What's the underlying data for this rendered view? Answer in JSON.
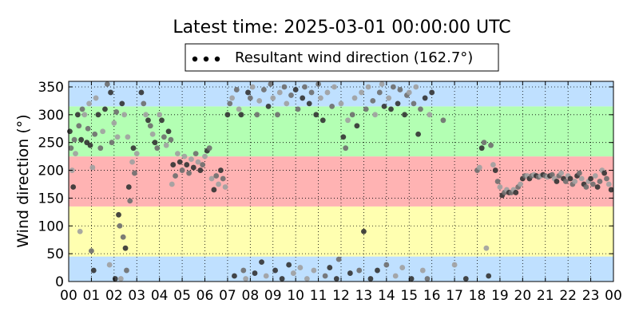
{
  "chart_data": {
    "type": "scatter",
    "title": "Latest time: 2025-03-01 00:00:00 UTC",
    "ylabel": "Wind direction (°)",
    "xlabel": "",
    "xlim": [
      0,
      24
    ],
    "ylim": [
      0,
      360
    ],
    "x_ticks": [
      "00",
      "01",
      "02",
      "03",
      "04",
      "05",
      "06",
      "07",
      "08",
      "09",
      "10",
      "11",
      "12",
      "13",
      "14",
      "15",
      "16",
      "17",
      "18",
      "19",
      "20",
      "21",
      "22",
      "23",
      "00"
    ],
    "y_ticks": [
      0,
      50,
      100,
      150,
      200,
      250,
      300,
      350
    ],
    "grid": true,
    "legend": {
      "placement": "top-center",
      "entries": [
        "Resultant wind direction (162.7°)"
      ]
    },
    "bands": [
      {
        "from": 0,
        "to": 45,
        "color": "#bfe0ff"
      },
      {
        "from": 45,
        "to": 135,
        "color": "#ffffb0"
      },
      {
        "from": 135,
        "to": 225,
        "color": "#ffb3b3"
      },
      {
        "from": 225,
        "to": 315,
        "color": "#b3ffb3"
      },
      {
        "from": 315,
        "to": 360,
        "color": "#bfe0ff"
      }
    ],
    "colors": {
      "dark": "#333333",
      "mid": "#6e6e6e",
      "light": "#a0a0a0"
    },
    "series": [
      {
        "values": [
          [
            0.05,
            270
          ],
          [
            0.1,
            240
          ],
          [
            0.15,
            200
          ],
          [
            0.2,
            170
          ],
          [
            0.25,
            255
          ],
          [
            0.3,
            230
          ],
          [
            0.4,
            300
          ],
          [
            0.45,
            280
          ],
          [
            0.5,
            90
          ],
          [
            0.55,
            255
          ],
          [
            0.6,
            310
          ],
          [
            0.7,
            300
          ],
          [
            0.8,
            250
          ],
          [
            0.85,
            275
          ],
          [
            0.9,
            320
          ],
          [
            0.95,
            245
          ],
          [
            1.0,
            55
          ],
          [
            1.05,
            205
          ],
          [
            1.1,
            20
          ],
          [
            1.15,
            265
          ],
          [
            1.2,
            330
          ],
          [
            1.3,
            300
          ],
          [
            1.4,
            240
          ],
          [
            1.5,
            270
          ],
          [
            1.6,
            310
          ],
          [
            1.7,
            355
          ],
          [
            1.8,
            30
          ],
          [
            1.85,
            340
          ],
          [
            1.9,
            250
          ],
          [
            2.0,
            285
          ],
          [
            2.05,
            5
          ],
          [
            2.1,
            305
          ],
          [
            2.15,
            260
          ],
          [
            2.2,
            120
          ],
          [
            2.25,
            100
          ],
          [
            2.3,
            5
          ],
          [
            2.35,
            320
          ],
          [
            2.4,
            80
          ],
          [
            2.45,
            300
          ],
          [
            2.5,
            60
          ],
          [
            2.55,
            20
          ],
          [
            2.6,
            260
          ],
          [
            2.65,
            170
          ],
          [
            2.7,
            145
          ],
          [
            2.8,
            215
          ],
          [
            2.85,
            240
          ],
          [
            2.9,
            195
          ],
          [
            3.0,
            230
          ],
          [
            3.2,
            340
          ],
          [
            3.3,
            320
          ],
          [
            3.4,
            300
          ],
          [
            3.5,
            290
          ],
          [
            3.6,
            280
          ],
          [
            3.7,
            265
          ],
          [
            3.8,
            250
          ],
          [
            3.9,
            240
          ],
          [
            4.0,
            300
          ],
          [
            4.1,
            290
          ],
          [
            4.2,
            260
          ],
          [
            4.3,
            245
          ],
          [
            4.4,
            270
          ],
          [
            4.5,
            255
          ],
          [
            4.55,
            175
          ],
          [
            4.6,
            210
          ],
          [
            4.7,
            190
          ],
          [
            4.8,
            230
          ],
          [
            4.9,
            215
          ],
          [
            5.0,
            200
          ],
          [
            5.1,
            225
          ],
          [
            5.2,
            210
          ],
          [
            5.3,
            195
          ],
          [
            5.4,
            220
          ],
          [
            5.5,
            205
          ],
          [
            5.6,
            230
          ],
          [
            5.7,
            215
          ],
          [
            5.8,
            200
          ],
          [
            5.9,
            210
          ],
          [
            6.0,
            225
          ],
          [
            6.1,
            235
          ],
          [
            6.2,
            240
          ],
          [
            6.3,
            185
          ],
          [
            6.4,
            165
          ],
          [
            6.5,
            190
          ],
          [
            6.6,
            175
          ],
          [
            6.7,
            200
          ],
          [
            6.8,
            185
          ],
          [
            6.9,
            170
          ],
          [
            7.0,
            300
          ],
          [
            7.1,
            320
          ],
          [
            7.2,
            330
          ],
          [
            7.3,
            10
          ],
          [
            7.4,
            345
          ],
          [
            7.5,
            310
          ],
          [
            7.6,
            300
          ],
          [
            7.7,
            20
          ],
          [
            7.8,
            5
          ],
          [
            7.9,
            340
          ],
          [
            8.0,
            330
          ],
          [
            8.1,
            350
          ],
          [
            8.2,
            15
          ],
          [
            8.3,
            300
          ],
          [
            8.4,
            325
          ],
          [
            8.5,
            35
          ],
          [
            8.6,
            345
          ],
          [
            8.7,
            10
          ],
          [
            8.8,
            315
          ],
          [
            8.9,
            355
          ],
          [
            9.0,
            330
          ],
          [
            9.1,
            20
          ],
          [
            9.2,
            300
          ],
          [
            9.3,
            340
          ],
          [
            9.4,
            5
          ],
          [
            9.5,
            350
          ],
          [
            9.6,
            320
          ],
          [
            9.7,
            30
          ],
          [
            9.8,
            335
          ],
          [
            9.9,
            15
          ],
          [
            10.0,
            345
          ],
          [
            10.1,
            310
          ],
          [
            10.2,
            25
          ],
          [
            10.3,
            330
          ],
          [
            10.4,
            350
          ],
          [
            10.5,
            5
          ],
          [
            10.6,
            320
          ],
          [
            10.7,
            340
          ],
          [
            10.8,
            20
          ],
          [
            10.9,
            300
          ],
          [
            11.0,
            355
          ],
          [
            11.1,
            330
          ],
          [
            11.2,
            290
          ],
          [
            11.3,
            10
          ],
          [
            11.4,
            340
          ],
          [
            11.5,
            25
          ],
          [
            11.6,
            315
          ],
          [
            11.7,
            350
          ],
          [
            11.8,
            5
          ],
          [
            11.9,
            40
          ],
          [
            12.0,
            320
          ],
          [
            12.1,
            260
          ],
          [
            12.2,
            240
          ],
          [
            12.3,
            290
          ],
          [
            12.4,
            15
          ],
          [
            12.5,
            300
          ],
          [
            12.6,
            330
          ],
          [
            12.7,
            280
          ],
          [
            12.8,
            20
          ],
          [
            12.9,
            340
          ],
          [
            13.0,
            90
          ],
          [
            13.1,
            310
          ],
          [
            13.2,
            350
          ],
          [
            13.3,
            5
          ],
          [
            13.4,
            325
          ],
          [
            13.5,
            300
          ],
          [
            13.6,
            20
          ],
          [
            13.7,
            340
          ],
          [
            13.8,
            355
          ],
          [
            13.9,
            315
          ],
          [
            14.0,
            30
          ],
          [
            14.1,
            330
          ],
          [
            14.2,
            310
          ],
          [
            14.3,
            350
          ],
          [
            14.4,
            10
          ],
          [
            14.5,
            320
          ],
          [
            14.6,
            345
          ],
          [
            14.7,
            25
          ],
          [
            14.8,
            300
          ],
          [
            14.9,
            335
          ],
          [
            15.0,
            340
          ],
          [
            15.1,
            5
          ],
          [
            15.2,
            320
          ],
          [
            15.3,
            350
          ],
          [
            15.4,
            265
          ],
          [
            15.5,
            310
          ],
          [
            15.6,
            20
          ],
          [
            15.7,
            330
          ],
          [
            15.8,
            5
          ],
          [
            15.9,
            300
          ],
          [
            16.0,
            340
          ],
          [
            16.5,
            290
          ],
          [
            17.0,
            30
          ],
          [
            17.5,
            5
          ],
          [
            18.0,
            200
          ],
          [
            18.1,
            205
          ],
          [
            18.2,
            240
          ],
          [
            18.3,
            250
          ],
          [
            18.4,
            60
          ],
          [
            18.5,
            10
          ],
          [
            18.6,
            245
          ],
          [
            18.7,
            210
          ],
          [
            18.8,
            200
          ],
          [
            18.9,
            180
          ],
          [
            19.0,
            170
          ],
          [
            19.1,
            155
          ],
          [
            19.2,
            160
          ],
          [
            19.3,
            165
          ],
          [
            19.4,
            160
          ],
          [
            19.5,
            160
          ],
          [
            19.6,
            165
          ],
          [
            19.7,
            160
          ],
          [
            19.8,
            170
          ],
          [
            19.9,
            175
          ],
          [
            20.0,
            185
          ],
          [
            20.1,
            190
          ],
          [
            20.2,
            190
          ],
          [
            20.3,
            185
          ],
          [
            20.4,
            190
          ],
          [
            20.5,
            192
          ],
          [
            20.6,
            190
          ],
          [
            20.7,
            188
          ],
          [
            20.8,
            190
          ],
          [
            20.9,
            192
          ],
          [
            21.0,
            190
          ],
          [
            21.1,
            188
          ],
          [
            21.2,
            190
          ],
          [
            21.3,
            192
          ],
          [
            21.4,
            185
          ],
          [
            21.5,
            180
          ],
          [
            21.6,
            190
          ],
          [
            21.7,
            195
          ],
          [
            21.8,
            185
          ],
          [
            21.9,
            180
          ],
          [
            22.0,
            190
          ],
          [
            22.1,
            185
          ],
          [
            22.2,
            175
          ],
          [
            22.3,
            180
          ],
          [
            22.4,
            190
          ],
          [
            22.5,
            195
          ],
          [
            22.6,
            185
          ],
          [
            22.7,
            175
          ],
          [
            22.8,
            170
          ],
          [
            22.9,
            180
          ],
          [
            23.0,
            185
          ],
          [
            23.1,
            175
          ],
          [
            23.2,
            190
          ],
          [
            23.3,
            170
          ],
          [
            23.4,
            180
          ],
          [
            23.5,
            200
          ],
          [
            23.6,
            195
          ],
          [
            23.7,
            185
          ],
          [
            23.8,
            175
          ],
          [
            23.9,
            165
          ]
        ]
      }
    ]
  }
}
